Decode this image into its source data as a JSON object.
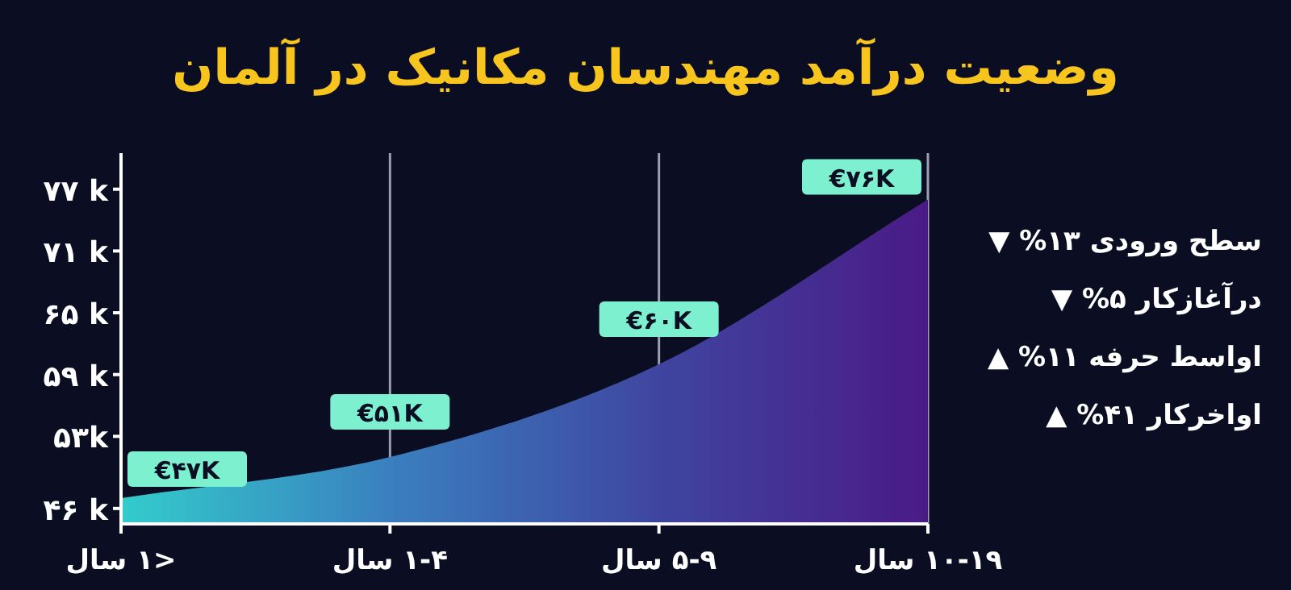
{
  "chart_data": {
    "type": "area",
    "title": "وضعیت درآمد مهندسان مکانیک در آلمان",
    "categories": [
      "<۱ سال",
      "۱-۴ سال",
      "۵-۹ سال",
      "۱۰-۱۹ سال"
    ],
    "series": [
      {
        "values": [
          47,
          51,
          60,
          76
        ],
        "colors": [
          "#33cccc",
          "#3a7fbf",
          "#3f45a0",
          "#4a1a86"
        ],
        "value_labels": [
          "€۴۷K",
          "€۵۱K",
          "€۶۰K",
          "€۷۶K"
        ]
      }
    ],
    "ylim": [
      44.5,
      80.5
    ],
    "yticks": [
      {
        "value": 46,
        "label": "۴۶ k"
      },
      {
        "value": 53,
        "label": "۵۳k"
      },
      {
        "value": 59,
        "label": "۵۹ k"
      },
      {
        "value": 65,
        "label": "۶۵ k"
      },
      {
        "value": 71,
        "label": "۷۱ k"
      },
      {
        "value": 77,
        "label": "۷۷ k"
      }
    ],
    "grid": "x",
    "annotations": [
      "سطح ورودی ۱۳% ▼",
      "درآغازکار ۵% ▼",
      "اواسط حرفه ۱۱% ▲",
      "اواخرکار ۴۱% ▲"
    ]
  }
}
